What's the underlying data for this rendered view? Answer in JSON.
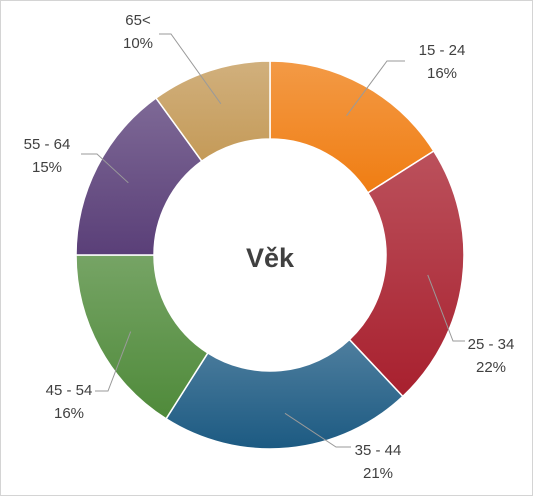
{
  "chart_data": {
    "type": "pie",
    "variant": "doughnut",
    "title": "Věk",
    "categories": [
      "15 - 24",
      "25 - 34",
      "35 - 44",
      "45 - 54",
      "55 - 64",
      "65<"
    ],
    "values": [
      16,
      22,
      21,
      16,
      15,
      10
    ],
    "value_labels": [
      "16%",
      "22%",
      "21%",
      "16%",
      "15%",
      "10%"
    ],
    "colors": [
      "#f07d12",
      "#a8202e",
      "#1c5a82",
      "#4f8a3a",
      "#5a3f78",
      "#c49a58"
    ],
    "legend": "none"
  }
}
